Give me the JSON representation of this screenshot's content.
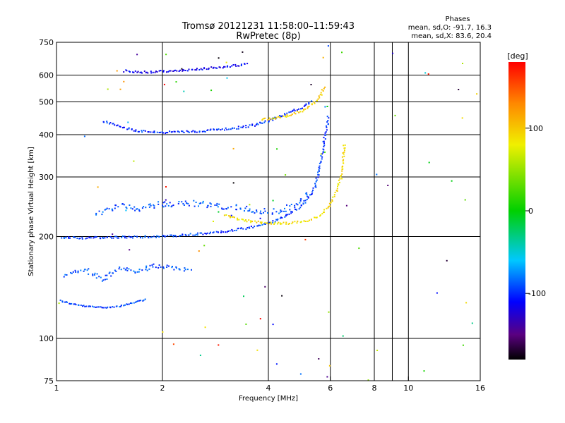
{
  "header": {
    "title_line1": "Tromsø 20121231 11:58:00–11:59:43",
    "title_line2": "RwPretec (8p)",
    "phases_title": "Phases",
    "phases_o": "mean, sd,O: -91.7, 16.3",
    "phases_x": "mean, sd,X:  83.6, 20.4"
  },
  "colorbar": {
    "label": "[deg]",
    "ticks": [
      {
        "value": 100,
        "label": "100"
      },
      {
        "value": 0,
        "label": "0"
      },
      {
        "value": -100,
        "label": "-100"
      }
    ]
  },
  "chart_data": {
    "type": "scatter",
    "title": "Tromsø 20121231 11:58:00–11:59:43",
    "subtitle": "RwPretec (8p)",
    "xlabel": "Frequency [MHz]",
    "ylabel": "Stationary phase Virtual Height [km]",
    "xscale": "log",
    "yscale": "log",
    "xlim": [
      1,
      16
    ],
    "ylim": [
      75,
      750
    ],
    "xticks": [
      {
        "value": 1,
        "label": "1"
      },
      {
        "value": 2,
        "label": "2"
      },
      {
        "value": 4,
        "label": "4"
      },
      {
        "value": 6,
        "label": "6"
      },
      {
        "value": 8,
        "label": "8"
      },
      {
        "value": 10,
        "label": "10"
      },
      {
        "value": 16,
        "label": "16"
      }
    ],
    "xgrid": [
      2,
      4,
      6,
      8,
      9,
      10
    ],
    "yticks": [
      {
        "value": 75,
        "label": "75"
      },
      {
        "value": 100,
        "label": "100"
      },
      {
        "value": 200,
        "label": "200"
      },
      {
        "value": 300,
        "label": "300"
      },
      {
        "value": 400,
        "label": "400"
      },
      {
        "value": 500,
        "label": "500"
      },
      {
        "value": 600,
        "label": "600"
      },
      {
        "value": 750,
        "label": "750"
      }
    ],
    "ygrid": [
      100,
      200,
      300,
      400,
      500,
      600
    ],
    "grid": true,
    "color_scale": {
      "quantity": "phase",
      "unit": "deg",
      "min": -180,
      "max": 180,
      "stops": [
        {
          "value": -180,
          "color": "#000000"
        },
        {
          "value": -150,
          "color": "#5a0080"
        },
        {
          "value": -110,
          "color": "#0000ff"
        },
        {
          "value": -60,
          "color": "#00c8ff"
        },
        {
          "value": 0,
          "color": "#00d000"
        },
        {
          "value": 80,
          "color": "#f0f000"
        },
        {
          "value": 130,
          "color": "#ff8800"
        },
        {
          "value": 180,
          "color": "#ff0000"
        }
      ]
    },
    "traces": [
      {
        "name_hint": "E-region O",
        "phase": -95,
        "spread": 2,
        "points": [
          [
            1.02,
            130
          ],
          [
            1.1,
            127
          ],
          [
            1.2,
            125
          ],
          [
            1.35,
            124
          ],
          [
            1.5,
            125
          ],
          [
            1.65,
            128
          ],
          [
            1.8,
            131
          ]
        ]
      },
      {
        "name_hint": "Es O patch",
        "phase": -90,
        "spread": 6,
        "points": [
          [
            1.05,
            155
          ],
          [
            1.2,
            160
          ],
          [
            1.35,
            150
          ],
          [
            1.5,
            162
          ],
          [
            1.7,
            158
          ],
          [
            1.9,
            165
          ],
          [
            2.1,
            162
          ],
          [
            2.4,
            160
          ]
        ]
      },
      {
        "name_hint": "F O low",
        "phase": -95,
        "spread": 3,
        "points": [
          [
            1.03,
            200
          ],
          [
            1.2,
            199
          ],
          [
            1.5,
            200
          ],
          [
            2.0,
            201
          ],
          [
            2.5,
            204
          ],
          [
            3.0,
            208
          ],
          [
            3.5,
            213
          ],
          [
            4.0,
            220
          ],
          [
            4.5,
            232
          ],
          [
            5.0,
            250
          ],
          [
            5.4,
            280
          ],
          [
            5.6,
            330
          ],
          [
            5.75,
            390
          ],
          [
            5.85,
            430
          ],
          [
            5.9,
            460
          ]
        ]
      },
      {
        "name_hint": "F O spread",
        "phase": -90,
        "spread": 8,
        "points": [
          [
            1.3,
            235
          ],
          [
            1.5,
            250
          ],
          [
            1.7,
            240
          ],
          [
            1.9,
            250
          ],
          [
            2.2,
            250
          ],
          [
            2.5,
            252
          ],
          [
            2.8,
            248
          ],
          [
            3.2,
            245
          ],
          [
            3.6,
            240
          ],
          [
            4.0,
            238
          ],
          [
            4.4,
            240
          ],
          [
            4.8,
            250
          ],
          [
            5.2,
            270
          ]
        ]
      },
      {
        "name_hint": "F X",
        "phase": 90,
        "spread": 3,
        "points": [
          [
            3.0,
            232
          ],
          [
            3.3,
            226
          ],
          [
            3.6,
            222
          ],
          [
            4.0,
            220
          ],
          [
            4.5,
            220
          ],
          [
            5.0,
            222
          ],
          [
            5.5,
            230
          ],
          [
            5.9,
            245
          ],
          [
            6.2,
            270
          ],
          [
            6.4,
            300
          ],
          [
            6.5,
            340
          ],
          [
            6.55,
            380
          ]
        ]
      },
      {
        "name_hint": "2F O",
        "phase": -100,
        "spread": 3,
        "points": [
          [
            1.35,
            440
          ],
          [
            1.5,
            425
          ],
          [
            1.7,
            412
          ],
          [
            2.0,
            408
          ],
          [
            2.4,
            410
          ],
          [
            2.8,
            415
          ],
          [
            3.2,
            420
          ],
          [
            3.6,
            428
          ],
          [
            4.0,
            442
          ],
          [
            4.5,
            465
          ],
          [
            5.0,
            485
          ],
          [
            5.3,
            505
          ]
        ]
      },
      {
        "name_hint": "2F X",
        "phase": 95,
        "spread": 3,
        "points": [
          [
            3.8,
            445
          ],
          [
            4.2,
            450
          ],
          [
            4.6,
            460
          ],
          [
            5.0,
            475
          ],
          [
            5.4,
            500
          ],
          [
            5.6,
            525
          ],
          [
            5.75,
            560
          ]
        ]
      },
      {
        "name_hint": "3F O",
        "phase": -115,
        "spread": 3,
        "points": [
          [
            1.55,
            620
          ],
          [
            1.8,
            615
          ],
          [
            2.1,
            620
          ],
          [
            2.5,
            628
          ],
          [
            3.0,
            638
          ],
          [
            3.5,
            650
          ]
        ]
      }
    ]
  }
}
